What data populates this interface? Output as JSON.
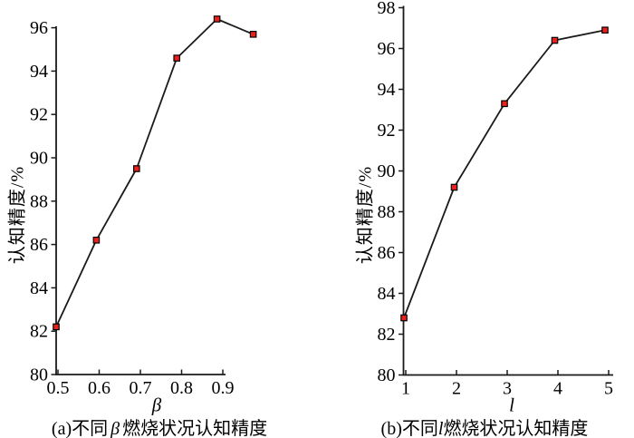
{
  "figure": {
    "background": "#ffffff",
    "text_color": "#000000"
  },
  "chart_data": [
    {
      "type": "line",
      "panel": "a",
      "caption": {
        "prefix": "(a)不同",
        "symbol": "β",
        "suffix": "燃烧状况认知精度",
        "full": "(a)不同β燃烧状况认知精度"
      },
      "xlabel": "β",
      "ylabel": "认知精度/%",
      "x": [
        0.5,
        0.6,
        0.7,
        0.8,
        0.9,
        0.99
      ],
      "y": [
        82.2,
        86.2,
        89.5,
        94.6,
        96.4,
        95.7
      ],
      "xtick_values": [
        0.5,
        0.6,
        0.7,
        0.8,
        0.9
      ],
      "xtick_labels": [
        "0.5",
        "0.6",
        "0.7",
        "0.8",
        "0.9"
      ],
      "ytick_values": [
        80,
        82,
        84,
        86,
        88,
        90,
        92,
        94,
        96
      ],
      "xlim": [
        0.5,
        0.9
      ],
      "ylim": [
        80,
        96
      ],
      "grid": false,
      "legend": null,
      "line_color": "#1a1a1a",
      "axis_color": "#1a1a1a",
      "marker": {
        "shape": "square",
        "fill": "#e8211c",
        "stroke": "#000000",
        "size": 6.4
      }
    },
    {
      "type": "line",
      "panel": "b",
      "caption": {
        "prefix": "(b)不同",
        "symbol": "l",
        "suffix": "燃烧状况认知精度",
        "full": "(b)不同l燃烧状况认知精度"
      },
      "xlabel": "l",
      "ylabel": "认知精度/%",
      "x": [
        1,
        2,
        3,
        4,
        5
      ],
      "y": [
        82.8,
        89.2,
        93.3,
        96.4,
        96.9
      ],
      "xtick_values": [
        1,
        2,
        3,
        4,
        5
      ],
      "xtick_labels": [
        "1",
        "2",
        "3",
        "4",
        "5"
      ],
      "ytick_values": [
        80,
        82,
        84,
        86,
        88,
        90,
        92,
        94,
        96,
        98
      ],
      "xlim": [
        1,
        5
      ],
      "ylim": [
        80,
        98
      ],
      "grid": false,
      "legend": null,
      "line_color": "#1a1a1a",
      "axis_color": "#1a1a1a",
      "marker": {
        "shape": "square",
        "fill": "#e8211c",
        "stroke": "#000000",
        "size": 6.4
      }
    }
  ]
}
